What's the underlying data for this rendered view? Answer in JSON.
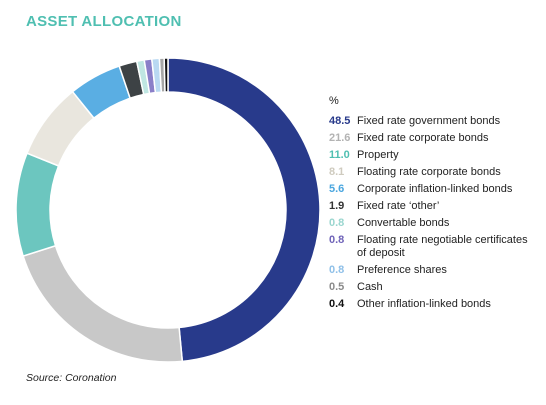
{
  "title": "ASSET ALLOCATION",
  "source": "Source: Coronation",
  "unit_label": "%",
  "colors": {
    "title": "#4fbfb1"
  },
  "chart_data": {
    "type": "pie",
    "variant": "donut",
    "start_angle": "top, clockwise",
    "legend_position": "right",
    "unit": "%",
    "slices": [
      {
        "label": "Fixed rate government bonds",
        "value": 48.5,
        "value_text": "48.5",
        "color": "#283a8b",
        "label_color": "#283a8b"
      },
      {
        "label": "Fixed rate corporate bonds",
        "value": 21.6,
        "value_text": "21.6",
        "color": "#c8c8c8",
        "label_color": "#b3b3b3"
      },
      {
        "label": "Property",
        "value": 11.0,
        "value_text": "11.0",
        "color": "#6cc6bf",
        "label_color": "#4fbfb1"
      },
      {
        "label": "Floating rate corporate bonds",
        "value": 8.1,
        "value_text": "8.1",
        "color": "#e9e6de",
        "label_color": "#cfcbbf"
      },
      {
        "label": "Corporate inflation-linked bonds",
        "value": 5.6,
        "value_text": "5.6",
        "color": "#5aaee3",
        "label_color": "#4aa6df"
      },
      {
        "label": "Fixed rate ‘other’",
        "value": 1.9,
        "value_text": "1.9",
        "color": "#3d4245",
        "label_color": "#333333"
      },
      {
        "label": "Convertable bonds",
        "value": 0.8,
        "value_text": "0.8",
        "color": "#bfe6e2",
        "label_color": "#9ad6cf"
      },
      {
        "label": "Floating rate negotiable certificates of deposit",
        "value": 0.8,
        "value_text": "0.8",
        "color": "#8a7fc8",
        "label_color": "#6f63b8"
      },
      {
        "label": "Preference shares",
        "value": 0.8,
        "value_text": "0.8",
        "color": "#b9d9f2",
        "label_color": "#8fc0e8"
      },
      {
        "label": "Cash",
        "value": 0.5,
        "value_text": "0.5",
        "color": "#a7a7a7",
        "label_color": "#8a8a8a"
      },
      {
        "label": "Other inflation-linked bonds",
        "value": 0.4,
        "value_text": "0.4",
        "color": "#111111",
        "label_color": "#111111"
      }
    ]
  }
}
